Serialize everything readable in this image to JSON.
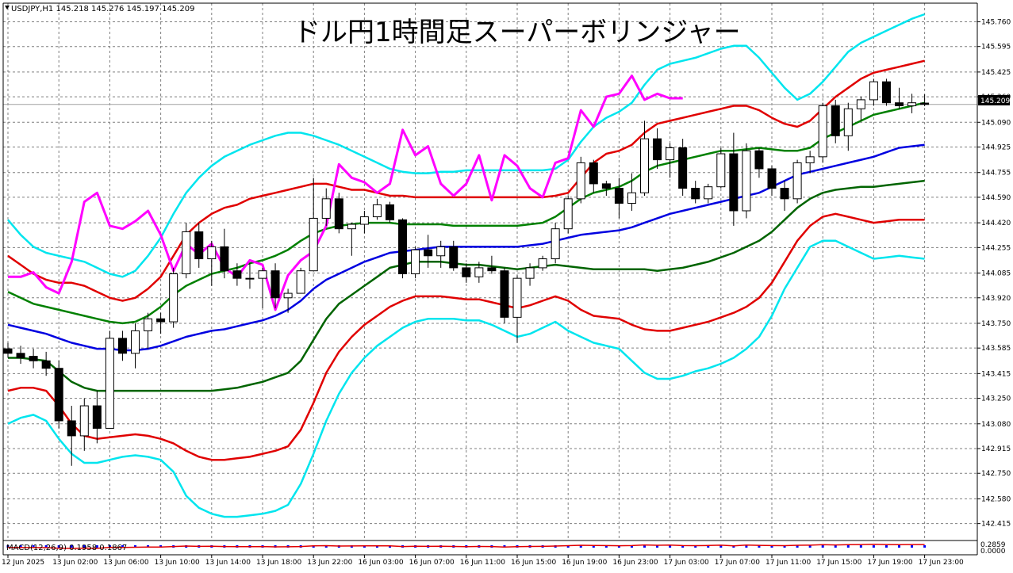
{
  "header": {
    "symbol": "USDJPY,H1",
    "ohlc": "145.218 145.276 145.197 145.209"
  },
  "title": "ドル円1時間足スーパーボリンジャー",
  "macd_label": "MACD(12,26,9) 0.1958 0.1867",
  "macd_values": [
    "0.2859",
    "0.0000"
  ],
  "current_price": "145.209",
  "chart_data": {
    "type": "candlestick",
    "title": "ドル円1時間足スーパーボリンジャー",
    "ylim": [
      142.355,
      145.81
    ],
    "y_ticks": [
      "145.760",
      "145.595",
      "145.425",
      "145.260",
      "145.090",
      "144.925",
      "144.755",
      "144.590",
      "144.420",
      "144.255",
      "144.085",
      "143.920",
      "143.750",
      "143.585",
      "143.415",
      "143.250",
      "143.080",
      "142.915",
      "142.750",
      "142.580",
      "142.415"
    ],
    "x_ticks": [
      {
        "i": 0,
        "label": "12 Jun 2025"
      },
      {
        "i": 4,
        "label": "13 Jun 02:00"
      },
      {
        "i": 8,
        "label": "13 Jun 06:00"
      },
      {
        "i": 12,
        "label": "13 Jun 10:00"
      },
      {
        "i": 16,
        "label": "13 Jun 14:00"
      },
      {
        "i": 20,
        "label": "13 Jun 18:00"
      },
      {
        "i": 24,
        "label": "13 Jun 22:00"
      },
      {
        "i": 28,
        "label": "16 Jun 03:00"
      },
      {
        "i": 32,
        "label": "16 Jun 07:00"
      },
      {
        "i": 36,
        "label": "16 Jun 11:00"
      },
      {
        "i": 40,
        "label": "16 Jun 15:00"
      },
      {
        "i": 44,
        "label": "16 Jun 19:00"
      },
      {
        "i": 48,
        "label": "16 Jun 23:00"
      },
      {
        "i": 52,
        "label": "17 Jun 03:00"
      },
      {
        "i": 56,
        "label": "17 Jun 07:00"
      },
      {
        "i": 60,
        "label": "17 Jun 11:00"
      },
      {
        "i": 64,
        "label": "17 Jun 15:00"
      },
      {
        "i": 68,
        "label": "17 Jun 19:00"
      },
      {
        "i": 72,
        "label": "17 Jun 23:00"
      }
    ],
    "candles": [
      [
        143.58,
        143.62,
        143.52,
        143.55
      ],
      [
        143.55,
        143.6,
        143.48,
        143.52
      ],
      [
        143.53,
        143.58,
        143.45,
        143.5
      ],
      [
        143.5,
        143.56,
        143.4,
        143.45
      ],
      [
        143.45,
        143.5,
        143.05,
        143.1
      ],
      [
        143.1,
        143.2,
        142.8,
        143.0
      ],
      [
        143.0,
        143.25,
        142.9,
        143.2
      ],
      [
        143.2,
        143.3,
        142.95,
        143.05
      ],
      [
        143.05,
        143.7,
        143.05,
        143.65
      ],
      [
        143.65,
        143.7,
        143.5,
        143.55
      ],
      [
        143.55,
        143.75,
        143.45,
        143.7
      ],
      [
        143.7,
        143.82,
        143.58,
        143.78
      ],
      [
        143.78,
        143.82,
        143.68,
        143.76
      ],
      [
        143.76,
        144.12,
        143.72,
        144.08
      ],
      [
        144.08,
        144.42,
        144.05,
        144.36
      ],
      [
        144.36,
        144.42,
        144.12,
        144.18
      ],
      [
        144.18,
        144.3,
        144.0,
        144.26
      ],
      [
        144.26,
        144.38,
        144.05,
        144.1
      ],
      [
        144.1,
        144.15,
        144.0,
        144.05
      ],
      [
        144.05,
        144.15,
        143.98,
        144.05
      ],
      [
        144.05,
        144.12,
        143.85,
        144.1
      ],
      [
        144.1,
        144.15,
        143.85,
        143.92
      ],
      [
        143.92,
        143.98,
        143.82,
        143.95
      ],
      [
        143.95,
        144.12,
        143.95,
        144.1
      ],
      [
        144.1,
        144.72,
        144.1,
        144.45
      ],
      [
        144.45,
        144.65,
        144.4,
        144.58
      ],
      [
        144.58,
        144.62,
        144.35,
        144.38
      ],
      [
        144.38,
        144.42,
        144.2,
        144.41
      ],
      [
        144.41,
        144.5,
        144.35,
        144.46
      ],
      [
        144.46,
        144.58,
        144.44,
        144.54
      ],
      [
        144.54,
        144.56,
        144.42,
        144.44
      ],
      [
        144.44,
        144.45,
        144.05,
        144.08
      ],
      [
        144.08,
        144.26,
        144.05,
        144.24
      ],
      [
        144.24,
        144.34,
        144.12,
        144.2
      ],
      [
        144.2,
        144.3,
        144.12,
        144.26
      ],
      [
        144.26,
        144.3,
        144.1,
        144.12
      ],
      [
        144.12,
        144.15,
        144.02,
        144.06
      ],
      [
        144.06,
        144.16,
        144.02,
        144.12
      ],
      [
        144.12,
        144.2,
        144.08,
        144.1
      ],
      [
        144.1,
        144.12,
        143.75,
        143.79
      ],
      [
        143.79,
        144.07,
        143.62,
        144.05
      ],
      [
        144.05,
        144.15,
        144.0,
        144.12
      ],
      [
        144.12,
        144.2,
        144.1,
        144.18
      ],
      [
        144.18,
        144.42,
        144.15,
        144.38
      ],
      [
        144.38,
        144.6,
        144.35,
        144.58
      ],
      [
        144.58,
        144.86,
        144.55,
        144.82
      ],
      [
        144.82,
        144.84,
        144.62,
        144.68
      ],
      [
        144.68,
        144.7,
        144.6,
        144.65
      ],
      [
        144.65,
        144.72,
        144.45,
        144.55
      ],
      [
        144.55,
        144.75,
        144.5,
        144.62
      ],
      [
        144.62,
        145.1,
        144.6,
        144.98
      ],
      [
        144.98,
        145.05,
        144.78,
        144.84
      ],
      [
        144.84,
        144.95,
        144.72,
        144.92
      ],
      [
        144.92,
        144.98,
        144.6,
        144.65
      ],
      [
        144.65,
        144.7,
        144.55,
        144.58
      ],
      [
        144.58,
        144.68,
        144.55,
        144.66
      ],
      [
        144.66,
        144.92,
        144.65,
        144.88
      ],
      [
        144.88,
        145.02,
        144.4,
        144.5
      ],
      [
        144.5,
        144.95,
        144.45,
        144.9
      ],
      [
        144.9,
        144.92,
        144.72,
        144.78
      ],
      [
        144.78,
        144.8,
        144.6,
        144.65
      ],
      [
        144.65,
        144.7,
        144.5,
        144.58
      ],
      [
        144.58,
        144.84,
        144.55,
        144.82
      ],
      [
        144.82,
        144.9,
        144.75,
        144.86
      ],
      [
        144.86,
        145.22,
        144.82,
        145.2
      ],
      [
        145.2,
        145.24,
        144.95,
        145.0
      ],
      [
        145.0,
        145.22,
        144.9,
        145.18
      ],
      [
        145.18,
        145.26,
        145.1,
        145.24
      ],
      [
        145.24,
        145.38,
        145.2,
        145.36
      ],
      [
        145.36,
        145.38,
        145.2,
        145.22
      ],
      [
        145.22,
        145.32,
        145.18,
        145.2
      ],
      [
        145.2,
        145.28,
        145.15,
        145.22
      ],
      [
        145.218,
        145.276,
        145.197,
        145.209
      ]
    ],
    "series": [
      {
        "color": "#00e5ee",
        "values": [
          143.08,
          143.12,
          143.14,
          143.1,
          142.98,
          142.88,
          142.82,
          142.82,
          142.84,
          142.86,
          142.87,
          142.86,
          142.84,
          142.76,
          142.6,
          142.52,
          142.48,
          142.46,
          142.46,
          142.47,
          142.48,
          142.5,
          142.54,
          142.68,
          142.88,
          143.1,
          143.28,
          143.42,
          143.52,
          143.6,
          143.66,
          143.72,
          143.76,
          143.78,
          143.78,
          143.78,
          143.77,
          143.77,
          143.74,
          143.7,
          143.66,
          143.68,
          143.72,
          143.76,
          143.7,
          143.66,
          143.62,
          143.6,
          143.58,
          143.5,
          143.42,
          143.38,
          143.38,
          143.4,
          143.43,
          143.45,
          143.48,
          143.52,
          143.58,
          143.66,
          143.8,
          143.98,
          144.12,
          144.26,
          144.3,
          144.3,
          144.26,
          144.22,
          144.18,
          144.19,
          144.2,
          144.19,
          144.18
        ]
      },
      {
        "color": "#e00000",
        "values": [
          143.3,
          143.32,
          143.32,
          143.3,
          143.2,
          143.08,
          143.0,
          142.98,
          142.99,
          143.0,
          143.01,
          143.0,
          142.98,
          142.95,
          142.9,
          142.86,
          142.84,
          142.84,
          142.85,
          142.86,
          142.88,
          142.9,
          142.93,
          143.04,
          143.22,
          143.42,
          143.56,
          143.66,
          143.74,
          143.8,
          143.86,
          143.9,
          143.93,
          143.93,
          143.93,
          143.92,
          143.91,
          143.91,
          143.89,
          143.87,
          143.85,
          143.87,
          143.9,
          143.93,
          143.9,
          143.84,
          143.8,
          143.79,
          143.78,
          143.74,
          143.71,
          143.7,
          143.7,
          143.72,
          143.74,
          143.76,
          143.79,
          143.82,
          143.86,
          143.92,
          144.02,
          144.16,
          144.3,
          144.4,
          144.46,
          144.48,
          144.46,
          144.44,
          144.42,
          144.43,
          144.44,
          144.44,
          144.44
        ]
      },
      {
        "color": "#006400",
        "values": [
          143.52,
          143.52,
          143.51,
          143.5,
          143.43,
          143.36,
          143.32,
          143.3,
          143.3,
          143.3,
          143.3,
          143.3,
          143.3,
          143.3,
          143.3,
          143.3,
          143.3,
          143.31,
          143.32,
          143.34,
          143.36,
          143.39,
          143.42,
          143.5,
          143.64,
          143.78,
          143.88,
          143.94,
          144.0,
          144.06,
          144.12,
          144.14,
          144.16,
          144.16,
          144.16,
          144.15,
          144.14,
          144.14,
          144.13,
          144.12,
          144.11,
          144.12,
          144.13,
          144.14,
          144.13,
          144.12,
          144.11,
          144.11,
          144.11,
          144.11,
          144.11,
          144.1,
          144.11,
          144.12,
          144.14,
          144.16,
          144.19,
          144.22,
          144.26,
          144.3,
          144.36,
          144.44,
          144.52,
          144.58,
          144.62,
          144.64,
          144.65,
          144.66,
          144.66,
          144.67,
          144.68,
          144.69,
          144.7
        ]
      },
      {
        "color": "#0000e0",
        "values": [
          143.74,
          143.72,
          143.7,
          143.68,
          143.65,
          143.62,
          143.6,
          143.58,
          143.58,
          143.57,
          143.57,
          143.58,
          143.6,
          143.63,
          143.66,
          143.68,
          143.7,
          143.71,
          143.73,
          143.75,
          143.77,
          143.8,
          143.84,
          143.9,
          143.98,
          144.04,
          144.08,
          144.12,
          144.16,
          144.19,
          144.22,
          144.23,
          144.24,
          144.25,
          144.26,
          144.26,
          144.26,
          144.26,
          144.26,
          144.26,
          144.26,
          144.27,
          144.28,
          144.3,
          144.32,
          144.34,
          144.35,
          144.36,
          144.37,
          144.39,
          144.42,
          144.45,
          144.48,
          144.5,
          144.52,
          144.54,
          144.56,
          144.58,
          144.6,
          144.62,
          144.66,
          144.7,
          144.74,
          144.76,
          144.78,
          144.8,
          144.82,
          144.84,
          144.86,
          144.89,
          144.92,
          144.93,
          144.94
        ]
      },
      {
        "color": "#008000",
        "values": [
          143.96,
          143.92,
          143.88,
          143.86,
          143.84,
          143.82,
          143.8,
          143.78,
          143.76,
          143.75,
          143.76,
          143.8,
          143.86,
          143.94,
          144.0,
          144.04,
          144.08,
          144.1,
          144.12,
          144.15,
          144.17,
          144.2,
          144.24,
          144.3,
          144.35,
          144.38,
          144.4,
          144.41,
          144.42,
          144.42,
          144.42,
          144.41,
          144.41,
          144.41,
          144.41,
          144.4,
          144.4,
          144.4,
          144.4,
          144.4,
          144.4,
          144.41,
          144.42,
          144.46,
          144.52,
          144.58,
          144.62,
          144.64,
          144.66,
          144.7,
          144.76,
          144.8,
          144.82,
          144.84,
          144.86,
          144.88,
          144.9,
          144.9,
          144.91,
          144.92,
          144.91,
          144.9,
          144.9,
          144.92,
          144.98,
          145.02,
          145.06,
          145.1,
          145.14,
          145.16,
          145.18,
          145.2,
          145.22
        ]
      },
      {
        "color": "#e00000",
        "values": [
          144.2,
          144.14,
          144.08,
          144.04,
          144.02,
          144.02,
          144.0,
          143.96,
          143.92,
          143.9,
          143.92,
          143.98,
          144.06,
          144.2,
          144.34,
          144.42,
          144.48,
          144.52,
          144.54,
          144.58,
          144.6,
          144.62,
          144.64,
          144.66,
          144.68,
          144.68,
          144.66,
          144.64,
          144.64,
          144.62,
          144.6,
          144.6,
          144.59,
          144.59,
          144.59,
          144.59,
          144.59,
          144.59,
          144.59,
          144.59,
          144.59,
          144.59,
          144.59,
          144.6,
          144.62,
          144.72,
          144.82,
          144.88,
          144.9,
          144.94,
          145.02,
          145.08,
          145.1,
          145.12,
          145.14,
          145.16,
          145.18,
          145.2,
          145.2,
          145.17,
          145.12,
          145.08,
          145.06,
          145.1,
          145.18,
          145.26,
          145.32,
          145.38,
          145.42,
          145.44,
          145.46,
          145.48,
          145.5
        ]
      },
      {
        "color": "#00e5ee",
        "values": [
          144.44,
          144.34,
          144.26,
          144.22,
          144.2,
          144.18,
          144.16,
          144.12,
          144.08,
          144.06,
          144.1,
          144.2,
          144.32,
          144.48,
          144.62,
          144.72,
          144.8,
          144.86,
          144.9,
          144.94,
          144.97,
          145.0,
          145.02,
          145.02,
          145.0,
          144.97,
          144.94,
          144.9,
          144.86,
          144.82,
          144.78,
          144.76,
          144.75,
          144.75,
          144.76,
          144.76,
          144.77,
          144.77,
          144.77,
          144.77,
          144.77,
          144.77,
          144.77,
          144.78,
          144.84,
          144.96,
          145.06,
          145.12,
          145.16,
          145.22,
          145.34,
          145.44,
          145.48,
          145.5,
          145.52,
          145.55,
          145.58,
          145.6,
          145.6,
          145.52,
          145.42,
          145.32,
          145.24,
          145.28,
          145.36,
          145.46,
          145.56,
          145.62,
          145.66,
          145.7,
          145.74,
          145.78,
          145.81
        ]
      },
      {
        "color": "#ff00ff",
        "width": 3,
        "values": [
          144.06,
          144.06,
          144.09,
          143.99,
          143.95,
          144.16,
          144.56,
          144.62,
          144.4,
          144.38,
          144.43,
          144.5,
          144.34,
          144.1,
          144.28,
          144.21,
          144.28,
          144.12,
          144.06,
          144.17,
          144.14,
          143.84,
          144.07,
          144.17,
          144.23,
          144.4,
          144.81,
          144.72,
          144.69,
          144.62,
          144.68,
          145.04,
          144.87,
          144.93,
          144.68,
          144.6,
          144.68,
          144.87,
          144.57,
          144.87,
          144.8,
          144.65,
          144.59,
          144.82,
          144.85,
          145.17,
          145.06,
          145.26,
          145.28,
          145.4,
          145.24,
          145.28,
          145.25,
          145.25,
          null,
          null,
          null,
          null,
          null,
          null,
          null,
          null,
          null,
          null,
          null,
          null,
          null,
          null,
          null,
          null,
          null,
          null,
          null
        ]
      }
    ]
  }
}
